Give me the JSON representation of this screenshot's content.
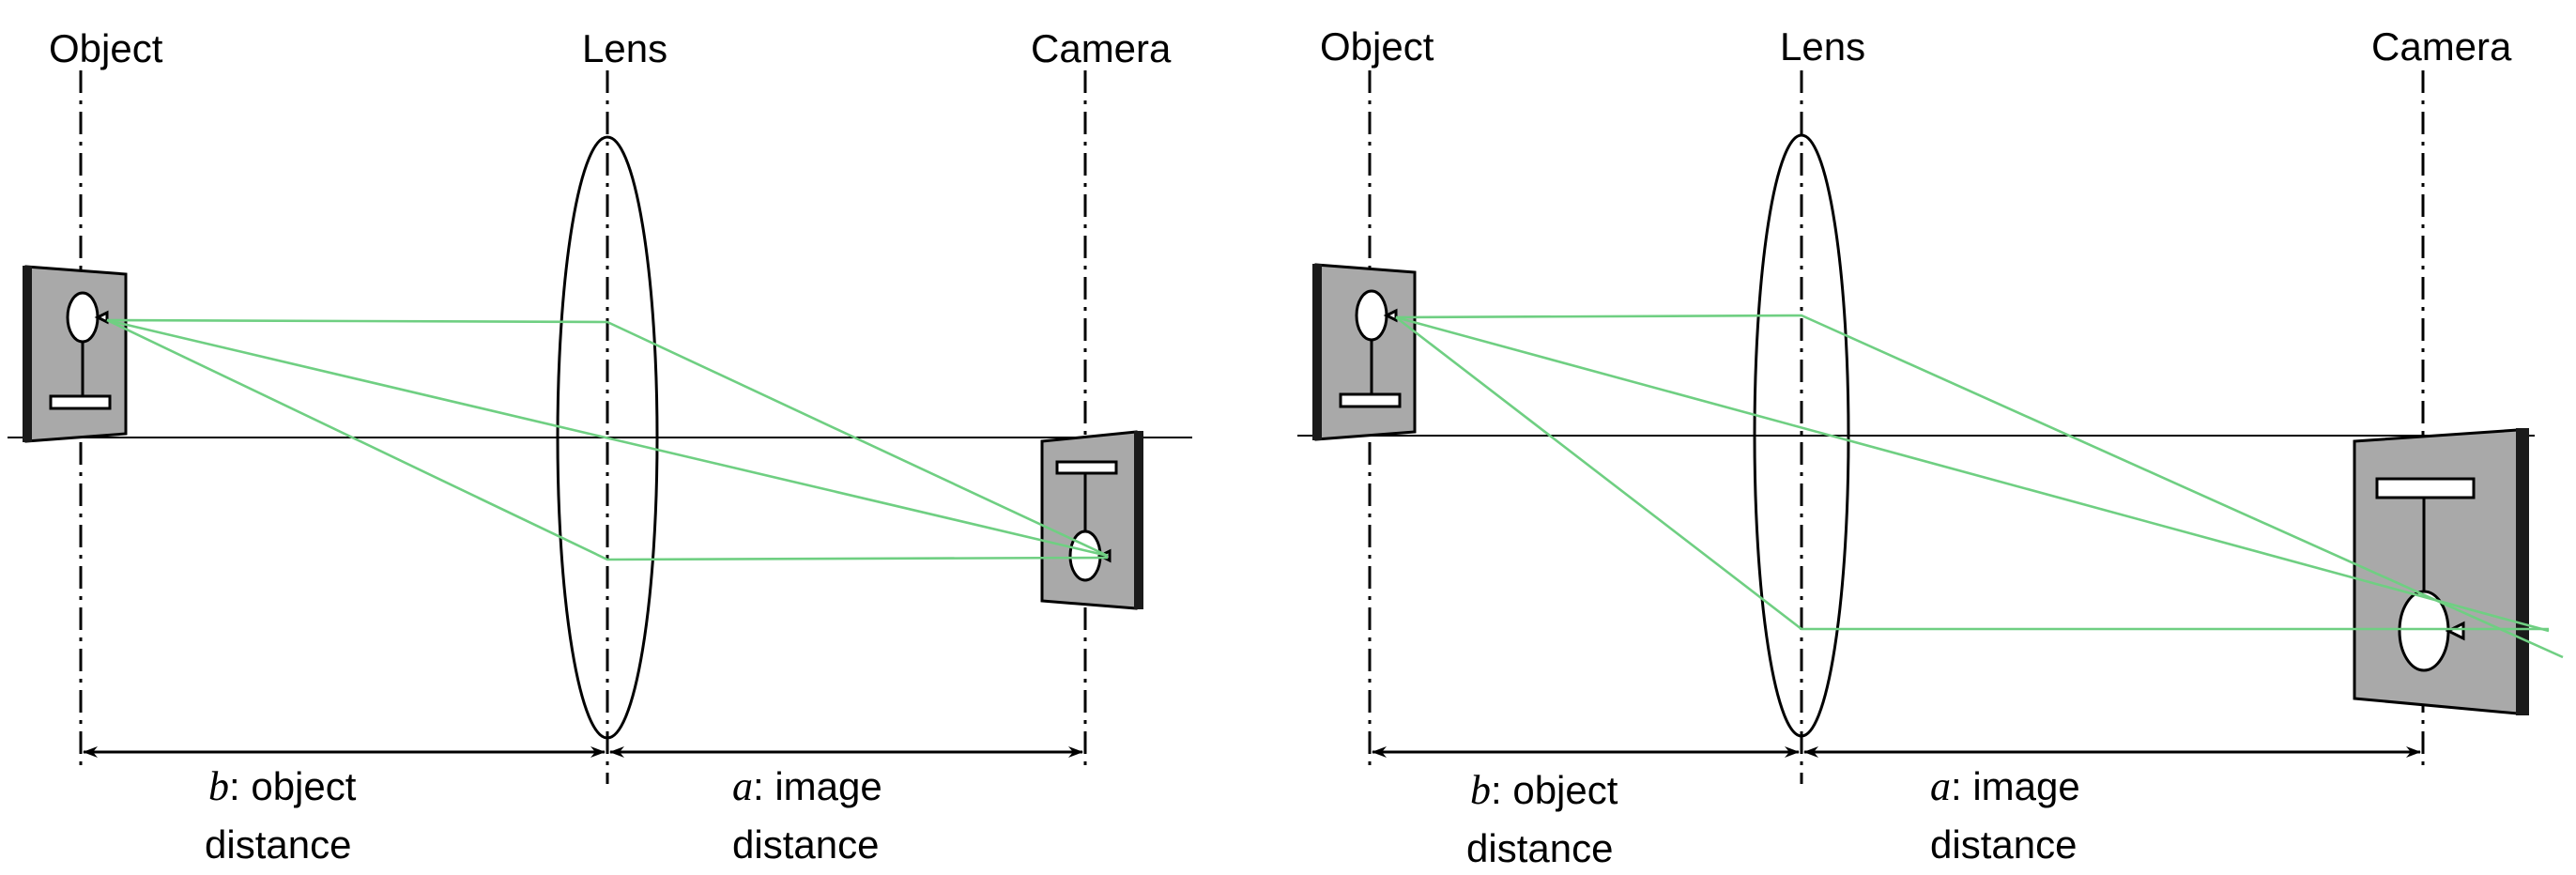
{
  "panels": [
    {
      "object_label": "Object",
      "lens_label": "Lens",
      "camera_label": "Camera",
      "b_symbol": "b",
      "b_text_line1": ": object",
      "b_text_line2": "distance",
      "a_symbol": "a",
      "a_text_line1": ": image",
      "a_text_line2": "distance"
    },
    {
      "object_label": "Object",
      "lens_label": "Lens",
      "camera_label": "Camera",
      "b_symbol": "b",
      "b_text_line1": ": object",
      "b_text_line2": "distance",
      "a_symbol": "a",
      "a_text_line1": ": image",
      "a_text_line2": "distance"
    }
  ],
  "colors": {
    "ray": "#6fcf82",
    "plate": "#a9a9a9"
  }
}
